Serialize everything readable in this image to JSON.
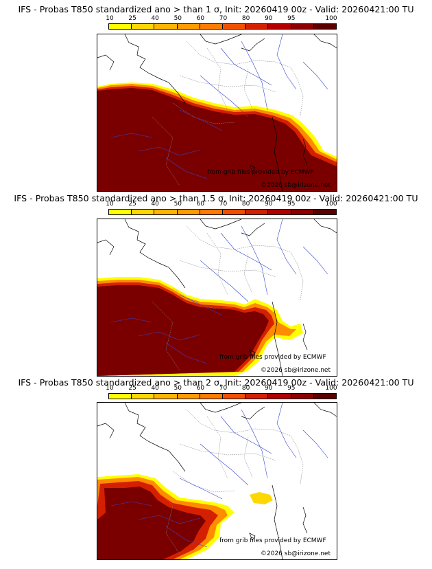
{
  "legend": {
    "ticks": [
      "10",
      "25",
      "40",
      "50",
      "60",
      "70",
      "80",
      "90",
      "95",
      "100"
    ],
    "colors": [
      "#ffff00",
      "#ffd700",
      "#ffb400",
      "#ff9a00",
      "#ff7a00",
      "#f05000",
      "#d42000",
      "#b00000",
      "#8c0000",
      "#5a0000"
    ]
  },
  "panels": [
    {
      "title": "IFS - Probas T850  standardized ano > than 1 σ, Init: 20260419 00z - Valid: 20260421:00 TU",
      "credit": "from grib files provided by ECMWF",
      "copyright": "©2026 sb@irizone.net"
    },
    {
      "title": "IFS - Probas T850  standardized ano > than 1.5 σ, Init: 20260419 00z - Valid: 20260421:00 TU",
      "credit": "from grib files provided by ECMWF",
      "copyright": "©2026 sb@irizone.net"
    },
    {
      "title": "IFS - Probas T850  standardized ano > than 2 σ, Init: 20260419 00z - Valid: 20260421:00 TU",
      "credit": "from grib files provided by ECMWF",
      "copyright": "©2026 sb@irizone.net"
    }
  ]
}
